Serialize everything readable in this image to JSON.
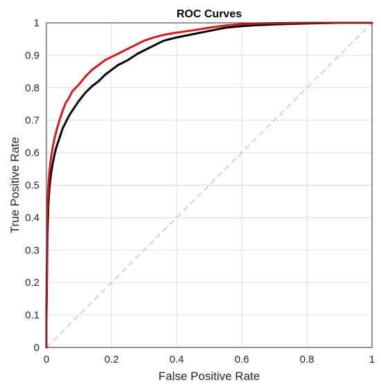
{
  "chart_data": {
    "type": "line",
    "title": "ROC Curves",
    "xlabel": "False Positive Rate",
    "ylabel": "True Positive Rate",
    "xlim": [
      0,
      1
    ],
    "ylim": [
      0,
      1
    ],
    "xticks": [
      "0",
      "0.2",
      "0.4",
      "0.6",
      "0.8",
      "1"
    ],
    "yticks": [
      "0",
      "0.1",
      "0.2",
      "0.3",
      "0.4",
      "0.5",
      "0.6",
      "0.7",
      "0.8",
      "0.9",
      "1"
    ],
    "grid": true,
    "legend": "none",
    "series": [
      {
        "color": "#d7191c",
        "x": [
          0,
          0,
          0.003,
          0.006,
          0.01,
          0.015,
          0.02,
          0.025,
          0.03,
          0.04,
          0.05,
          0.06,
          0.07,
          0.08,
          0.09,
          0.1,
          0.12,
          0.14,
          0.16,
          0.18,
          0.2,
          0.22,
          0.25,
          0.28,
          0.3,
          0.33,
          0.36,
          0.4,
          0.45,
          0.5,
          0.55,
          0.6,
          0.65,
          0.7,
          0.8,
          0.9,
          1.0
        ],
        "y": [
          0,
          0.12,
          0.42,
          0.5,
          0.55,
          0.59,
          0.62,
          0.645,
          0.665,
          0.7,
          0.73,
          0.755,
          0.77,
          0.79,
          0.8,
          0.81,
          0.835,
          0.855,
          0.87,
          0.885,
          0.895,
          0.905,
          0.92,
          0.935,
          0.945,
          0.955,
          0.963,
          0.97,
          0.977,
          0.985,
          0.992,
          0.996,
          0.998,
          0.999,
          1.0,
          1.0,
          1.0
        ]
      },
      {
        "color": "#000000",
        "x": [
          0,
          0,
          0.003,
          0.006,
          0.01,
          0.015,
          0.02,
          0.025,
          0.03,
          0.04,
          0.05,
          0.06,
          0.07,
          0.08,
          0.09,
          0.1,
          0.12,
          0.14,
          0.16,
          0.18,
          0.2,
          0.22,
          0.25,
          0.28,
          0.3,
          0.33,
          0.36,
          0.4,
          0.45,
          0.5,
          0.55,
          0.6,
          0.65,
          0.7,
          0.8,
          0.9,
          1.0
        ],
        "y": [
          0,
          0.08,
          0.34,
          0.44,
          0.5,
          0.54,
          0.57,
          0.595,
          0.615,
          0.645,
          0.675,
          0.695,
          0.715,
          0.73,
          0.745,
          0.76,
          0.785,
          0.805,
          0.82,
          0.84,
          0.855,
          0.87,
          0.885,
          0.905,
          0.915,
          0.93,
          0.945,
          0.955,
          0.965,
          0.975,
          0.985,
          0.99,
          0.993,
          0.995,
          0.998,
          1.0,
          1.0
        ]
      },
      {
        "color": "#b0b0b0",
        "dashed": true,
        "x": [
          0,
          1
        ],
        "y": [
          0,
          1
        ]
      }
    ]
  }
}
